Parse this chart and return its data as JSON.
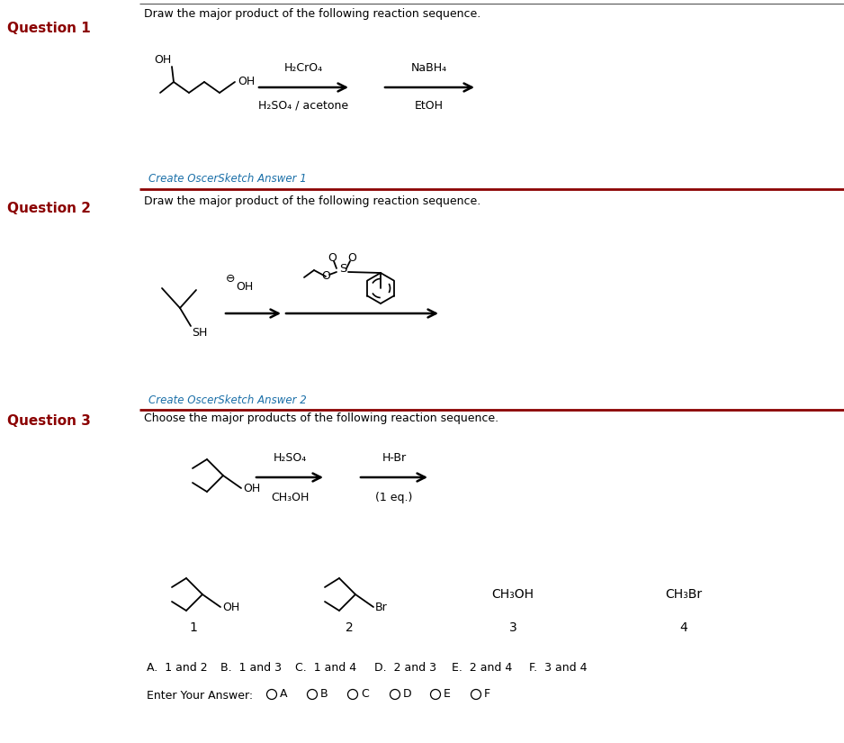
{
  "bg_color": "#ffffff",
  "dark_red": "#8B0000",
  "blue_link": "#1a6fa8",
  "black": "#000000",
  "q1_label": "Question 1",
  "q1_instruction": "Draw the major product of the following reaction sequence.",
  "q1_reagent1_top": "H₂CrO₄",
  "q1_reagent1_bot": "H₂SO₄ / acetone",
  "q1_reagent2_top": "NaBH₄",
  "q1_reagent2_bot": "EtOH",
  "q1_create": "Create OscerSketch Answer 1",
  "q2_label": "Question 2",
  "q2_instruction": "Draw the major product of the following reaction sequence.",
  "q2_minus": "⊖",
  "q2_oh": "OH",
  "q2_create": "Create OscerSketch Answer 2",
  "q3_label": "Question 3",
  "q3_instruction": "Choose the major products of the following reaction sequence.",
  "q3_reagent1_top": "H₂SO₄",
  "q3_reagent1_bot": "CH₃OH",
  "q3_reagent2_top": "H-Br",
  "q3_reagent2_bot": "(1 eq.)",
  "q3_compound3_formula": "CH₃OH",
  "q3_compound4_formula": "CH₃Br",
  "q3_choices": [
    "A.  1 and 2",
    "B.  1 and 3",
    "C.  1 and 4",
    "D.  2 and 3",
    "E.  2 and 4",
    "F.  3 and 4"
  ],
  "q3_answer_label": "Enter Your Answer:",
  "q3_answer_options": [
    "A",
    "B",
    "C",
    "D",
    "E",
    "F"
  ]
}
